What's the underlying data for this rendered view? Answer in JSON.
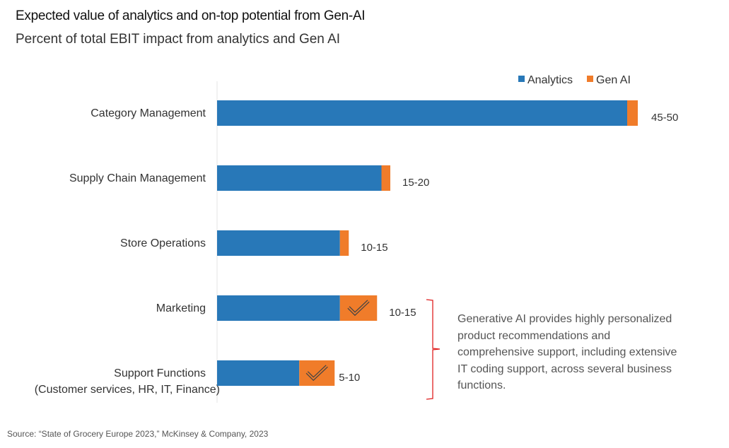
{
  "title": "Expected value of analytics and on-top potential from Gen-AI",
  "subtitle": "Percent of total EBIT impact from analytics and Gen AI",
  "note": "Generative AI provides highly personalized product recommendations and comprehensive support, including extensive IT coding support, across several business functions.",
  "source": "Source: “State of Grocery Europe 2023,” McKinsey & Company, 2023",
  "colors": {
    "analytics": "#2878b8",
    "genai": "#f07c2a",
    "bracket": "#e02020"
  },
  "chart_data": {
    "type": "bar",
    "orientation": "horizontal",
    "stacked": true,
    "categories": [
      "Category Management",
      "Supply Chain Management",
      "Store Operations",
      "Marketing",
      "Support Functions"
    ],
    "category_sublabels": [
      "",
      "",
      "",
      "",
      "(Customer services, HR, IT, Finance)"
    ],
    "series": [
      {
        "name": "Analytics",
        "values": [
          46.4,
          18.6,
          13.9,
          13.9,
          9.3
        ]
      },
      {
        "name": "Gen AI",
        "values": [
          1.2,
          1.0,
          1.0,
          4.2,
          4.0
        ]
      }
    ],
    "data_labels": [
      "45-50",
      "15-20",
      "10-15",
      "10-15",
      "5-10"
    ],
    "check_icon_on_genai": [
      false,
      false,
      false,
      true,
      true
    ],
    "legend_position": "top-right",
    "grid": false
  }
}
